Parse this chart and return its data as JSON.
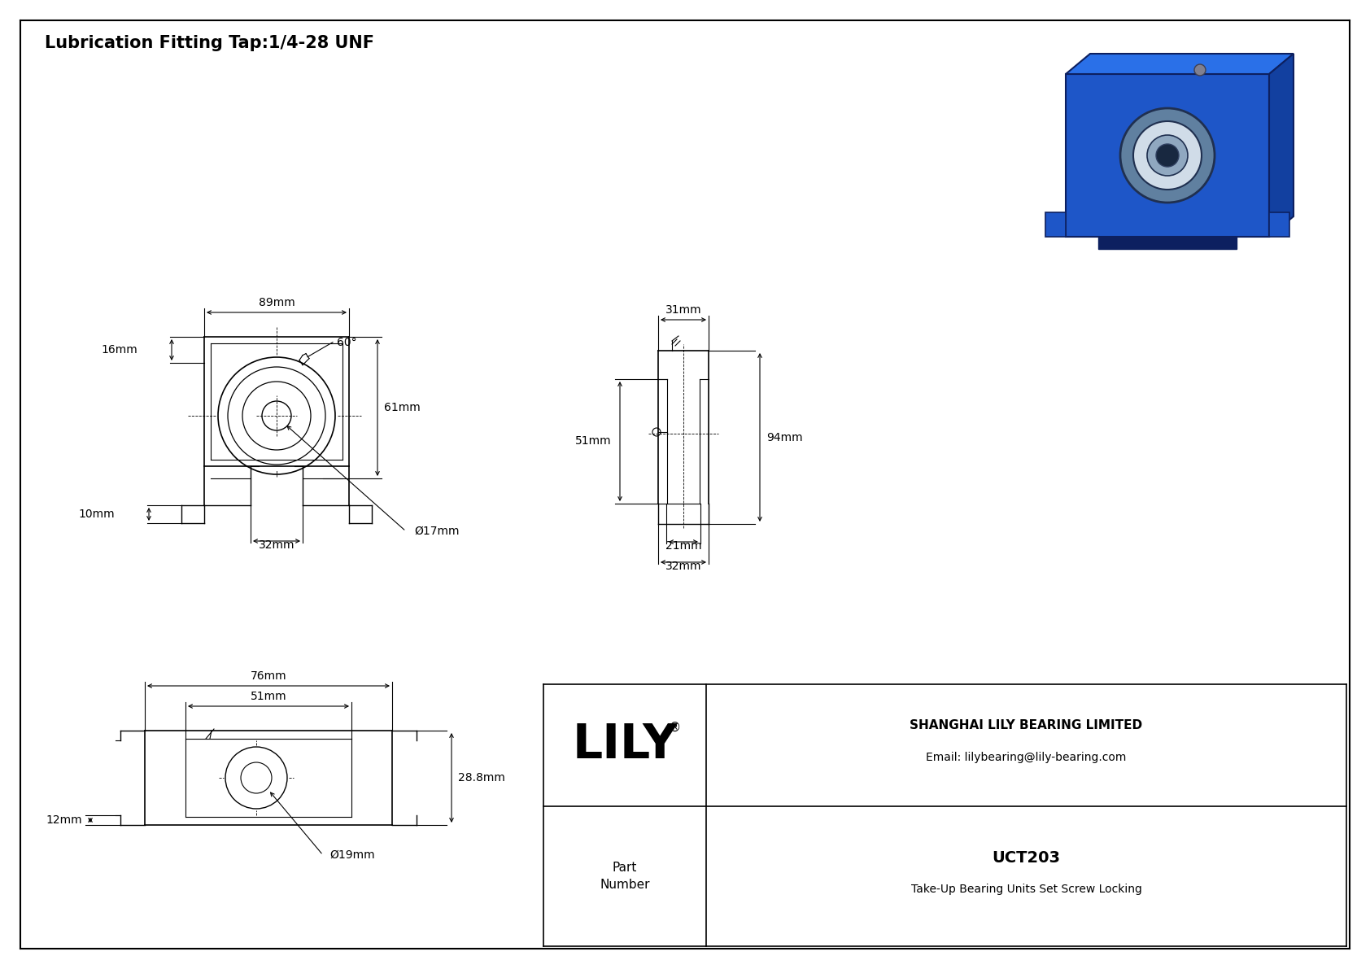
{
  "title": "Lubrication Fitting Tap:1/4-28 UNF",
  "background_color": "#ffffff",
  "line_color": "#000000",
  "title_fontsize": 15,
  "dim_fontsize": 10,
  "company_name": "SHANGHAI LILY BEARING LIMITED",
  "company_email": "Email: lilybearing@lily-bearing.com",
  "part_number": "UCT203",
  "part_description": "Take-Up Bearing Units Set Screw Locking",
  "dim_front_width": "89mm",
  "dim_front_height": "61mm",
  "dim_front_slot": "32mm",
  "dim_front_bore": "Ø17mm",
  "dim_front_left": "16mm",
  "dim_front_bottom": "10mm",
  "dim_front_angle": "60°",
  "dim_side_top": "31mm",
  "dim_side_height": "94mm",
  "dim_side_left": "51mm",
  "dim_side_bot1": "21mm",
  "dim_side_bot2": "32mm",
  "dim_bot_w1": "76mm",
  "dim_bot_w2": "51mm",
  "dim_bot_h": "28.8mm",
  "dim_bot_left": "12mm",
  "dim_bot_bore": "Ø19mm",
  "iso_body_color": "#1e56c8",
  "iso_body_color2": "#1a3fa0",
  "iso_bearing_color": "#8fa8c0",
  "iso_inner_color": "#c8d8e8"
}
